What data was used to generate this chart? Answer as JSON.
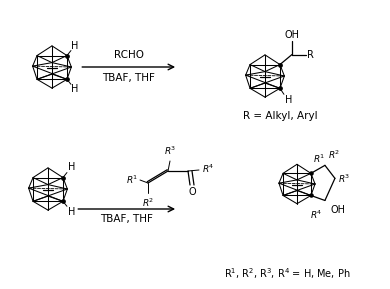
{
  "background_color": "#ffffff",
  "figsize": [
    3.9,
    2.89
  ],
  "dpi": 100,
  "line_color": "#000000",
  "font_size_reagents": 7.5,
  "font_size_labels": 7.5,
  "font_size_sub": 7.0,
  "reaction1_reagent1": "RCHO",
  "reaction1_reagent2": "TBAF, THF",
  "reaction1_product_label": "R = Alkyl, Aryl",
  "reaction2_reagent": "TBAF, THF",
  "reaction2_product_label": "R$^1$, R$^2$, R$^3$, R$^4$ = H, Me, Ph"
}
